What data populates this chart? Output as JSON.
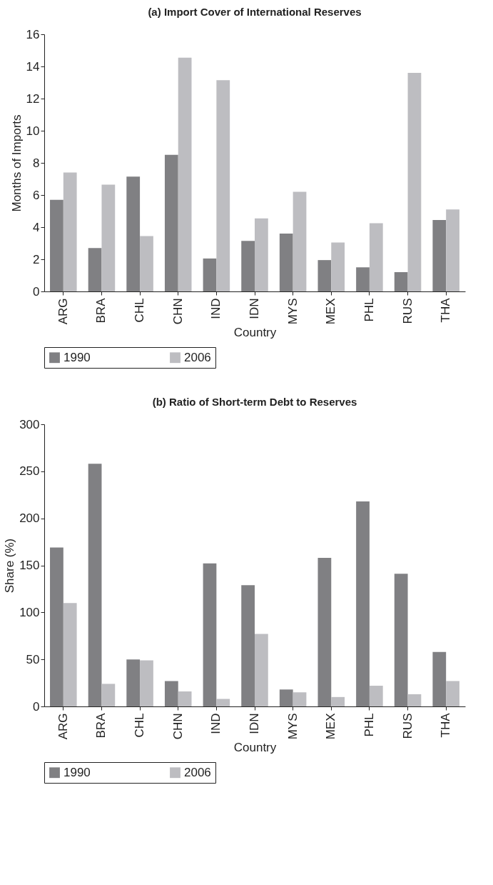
{
  "chart_data": [
    {
      "type": "bar",
      "title": "(a) Import Cover of International Reserves",
      "xlabel": "Country",
      "ylabel": "Months of Imports",
      "categories": [
        "ARG",
        "BRA",
        "CHL",
        "CHN",
        "IND",
        "IDN",
        "MYS",
        "MEX",
        "PHL",
        "RUS",
        "THA"
      ],
      "series": [
        {
          "name": "1990",
          "color": "#808083",
          "values": [
            5.7,
            2.7,
            7.15,
            8.5,
            2.05,
            3.15,
            3.6,
            1.95,
            1.5,
            1.2,
            4.45
          ]
        },
        {
          "name": "2006",
          "color": "#bdbdc1",
          "values": [
            7.4,
            6.65,
            3.45,
            14.55,
            13.15,
            4.55,
            6.2,
            3.05,
            4.25,
            13.6,
            5.1
          ]
        }
      ],
      "ylim": [
        0,
        16
      ],
      "yticks": [
        0,
        2,
        4,
        6,
        8,
        10,
        12,
        14,
        16
      ],
      "grid": false,
      "legend": "bottom"
    },
    {
      "type": "bar",
      "title": "(b) Ratio of Short-term Debt to Reserves",
      "xlabel": "Country",
      "ylabel": "Share (%)",
      "categories": [
        "ARG",
        "BRA",
        "CHL",
        "CHN",
        "IND",
        "IDN",
        "MYS",
        "MEX",
        "PHL",
        "RUS",
        "THA"
      ],
      "series": [
        {
          "name": "1990",
          "color": "#808083",
          "values": [
            169,
            258,
            50,
            27,
            152,
            129,
            18,
            158,
            218,
            141,
            58
          ]
        },
        {
          "name": "2006",
          "color": "#bdbdc1",
          "values": [
            110,
            24,
            49,
            16,
            8,
            77,
            15,
            10,
            22,
            13,
            27
          ]
        }
      ],
      "ylim": [
        0,
        300
      ],
      "yticks": [
        0,
        50,
        100,
        150,
        200,
        250,
        300
      ],
      "grid": false,
      "legend": "bottom"
    }
  ]
}
